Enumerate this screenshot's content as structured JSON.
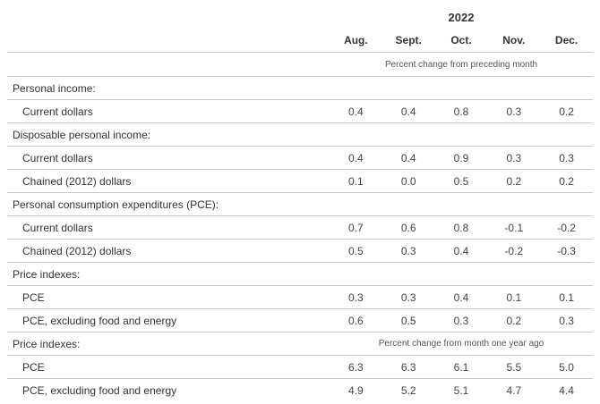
{
  "header": {
    "year": "2022",
    "months": [
      "Aug.",
      "Sept.",
      "Oct.",
      "Nov.",
      "Dec."
    ],
    "note_monthly": "Percent change from preceding month"
  },
  "rows": [
    {
      "type": "group",
      "label": "Personal income:"
    },
    {
      "type": "data",
      "label": "Current dollars",
      "values": [
        "0.4",
        "0.4",
        "0.8",
        "0.3",
        "0.2"
      ]
    },
    {
      "type": "group",
      "label": "Disposable personal income:"
    },
    {
      "type": "data",
      "label": "Current dollars",
      "values": [
        "0.4",
        "0.4",
        "0.9",
        "0.3",
        "0.3"
      ]
    },
    {
      "type": "data",
      "label": "Chained (2012) dollars",
      "values": [
        "0.1",
        "0.0",
        "0.5",
        "0.2",
        "0.2"
      ]
    },
    {
      "type": "group",
      "label": "Personal consumption expenditures (PCE):"
    },
    {
      "type": "data",
      "label": "Current dollars",
      "values": [
        "0.7",
        "0.6",
        "0.8",
        "-0.1",
        "-0.2"
      ]
    },
    {
      "type": "data",
      "label": "Chained (2012) dollars",
      "values": [
        "0.5",
        "0.3",
        "0.4",
        "-0.2",
        "-0.3"
      ]
    },
    {
      "type": "group",
      "label": "Price indexes:"
    },
    {
      "type": "data",
      "label": "PCE",
      "values": [
        "0.3",
        "0.3",
        "0.4",
        "0.1",
        "0.1"
      ]
    },
    {
      "type": "data",
      "label": "PCE, excluding food and energy",
      "values": [
        "0.6",
        "0.5",
        "0.3",
        "0.2",
        "0.3"
      ]
    },
    {
      "type": "group",
      "label": "Price indexes:",
      "note": "Percent change from month one year ago"
    },
    {
      "type": "data",
      "label": "PCE",
      "values": [
        "6.3",
        "6.3",
        "6.1",
        "5.5",
        "5.0"
      ]
    },
    {
      "type": "data",
      "label": "PCE, excluding food and energy",
      "values": [
        "4.9",
        "5.2",
        "5.1",
        "4.7",
        "4.4"
      ]
    }
  ]
}
